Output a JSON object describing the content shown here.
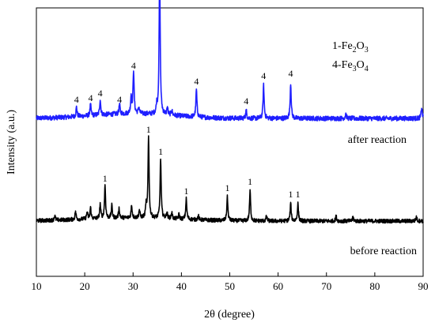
{
  "chart_data": {
    "type": "line",
    "xlabel": "2θ (degree)",
    "ylabel": "Intensity (a.u.)",
    "xlim": [
      10,
      90
    ],
    "x_ticks": [
      "10",
      "20",
      "30",
      "40",
      "50",
      "60",
      "70",
      "80",
      "90"
    ],
    "y_ticks_labeled": false,
    "grid": false,
    "legend": {
      "placement": "top-right",
      "entries": [
        {
          "prefix": "1-Fe",
          "sub1": "2",
          "mid": "O",
          "sub2": "3"
        },
        {
          "prefix": "4-Fe",
          "sub1": "3",
          "mid": "O",
          "sub2": "4"
        }
      ]
    },
    "series": [
      {
        "name": "after reaction",
        "color": "#1f1fff",
        "baseline": 200,
        "noise": 6,
        "peaks": [
          {
            "x": 18.3,
            "h": 12,
            "label": "4"
          },
          {
            "x": 21.2,
            "h": 14,
            "label": "4"
          },
          {
            "x": 23.2,
            "h": 20,
            "label": "4"
          },
          {
            "x": 27.2,
            "h": 12,
            "label": "4"
          },
          {
            "x": 29.6,
            "h": 22
          },
          {
            "x": 30.1,
            "h": 55,
            "label": "4"
          },
          {
            "x": 31.2,
            "h": 8
          },
          {
            "x": 34.9,
            "h": 10
          },
          {
            "x": 35.5,
            "h": 190,
            "label": "4"
          },
          {
            "x": 37.1,
            "h": 9
          },
          {
            "x": 38.0,
            "h": 7
          },
          {
            "x": 43.1,
            "h": 35,
            "label": "4"
          },
          {
            "x": 53.4,
            "h": 10,
            "label": "4"
          },
          {
            "x": 57.0,
            "h": 42,
            "label": "4"
          },
          {
            "x": 62.6,
            "h": 45,
            "label": "4"
          },
          {
            "x": 74.0,
            "h": 6
          },
          {
            "x": 89.7,
            "h": 14
          }
        ]
      },
      {
        "name": "before reaction",
        "color": "#000000",
        "baseline": 70,
        "noise": 5,
        "peaks": [
          {
            "x": 13.8,
            "h": 6
          },
          {
            "x": 18.1,
            "h": 10
          },
          {
            "x": 20.5,
            "h": 9
          },
          {
            "x": 21.2,
            "h": 14
          },
          {
            "x": 23.2,
            "h": 18
          },
          {
            "x": 24.2,
            "h": 42,
            "label": "1"
          },
          {
            "x": 25.6,
            "h": 16
          },
          {
            "x": 27.1,
            "h": 12
          },
          {
            "x": 29.7,
            "h": 16
          },
          {
            "x": 31.3,
            "h": 10
          },
          {
            "x": 32.7,
            "h": 16
          },
          {
            "x": 33.2,
            "h": 104,
            "label": "1"
          },
          {
            "x": 35.7,
            "h": 76,
            "label": "1"
          },
          {
            "x": 37.0,
            "h": 8
          },
          {
            "x": 38.0,
            "h": 8
          },
          {
            "x": 39.5,
            "h": 6
          },
          {
            "x": 41.0,
            "h": 26,
            "label": "1"
          },
          {
            "x": 43.5,
            "h": 5
          },
          {
            "x": 49.5,
            "h": 30,
            "label": "1"
          },
          {
            "x": 54.2,
            "h": 38,
            "label": "1"
          },
          {
            "x": 57.6,
            "h": 6
          },
          {
            "x": 62.6,
            "h": 22,
            "label": "1"
          },
          {
            "x": 64.1,
            "h": 22,
            "label": "1"
          },
          {
            "x": 72.0,
            "h": 6
          },
          {
            "x": 75.5,
            "h": 5
          },
          {
            "x": 88.6,
            "h": 5
          }
        ]
      }
    ]
  }
}
